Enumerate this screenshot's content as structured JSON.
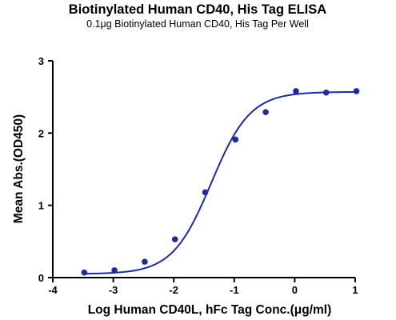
{
  "chart_data": {
    "type": "scatter",
    "title": "Biotinylated Human CD40, His Tag ELISA",
    "subtitle": "0.1μg Biotinylated Human CD40, His Tag Per Well",
    "xlabel": "Log Human CD40L, hFc Tag Conc.(μg/ml)",
    "ylabel": "Mean Abs.(OD450)",
    "xlim": [
      -4,
      1
    ],
    "ylim": [
      0,
      3
    ],
    "x_ticks": [
      "-4",
      "-3",
      "-2",
      "-1",
      "0",
      "1"
    ],
    "y_ticks": [
      "0",
      "1",
      "2",
      "3"
    ],
    "grid": false,
    "colors": {
      "series": "#1f2a9e",
      "axis": "#000000"
    },
    "series": [
      {
        "points": [
          {
            "x": -3.48,
            "y": 0.07
          },
          {
            "x": -2.98,
            "y": 0.1
          },
          {
            "x": -2.48,
            "y": 0.22
          },
          {
            "x": -1.98,
            "y": 0.53
          },
          {
            "x": -1.48,
            "y": 1.18
          },
          {
            "x": -0.98,
            "y": 1.91
          },
          {
            "x": -0.48,
            "y": 2.29
          },
          {
            "x": 0.02,
            "y": 2.58
          },
          {
            "x": 0.52,
            "y": 2.56
          },
          {
            "x": 1.02,
            "y": 2.58
          }
        ],
        "fit": {
          "type": "4PL",
          "bottom": 0.05,
          "top": 2.57,
          "logEC50": -1.38,
          "hill": 1.35
        }
      }
    ]
  }
}
